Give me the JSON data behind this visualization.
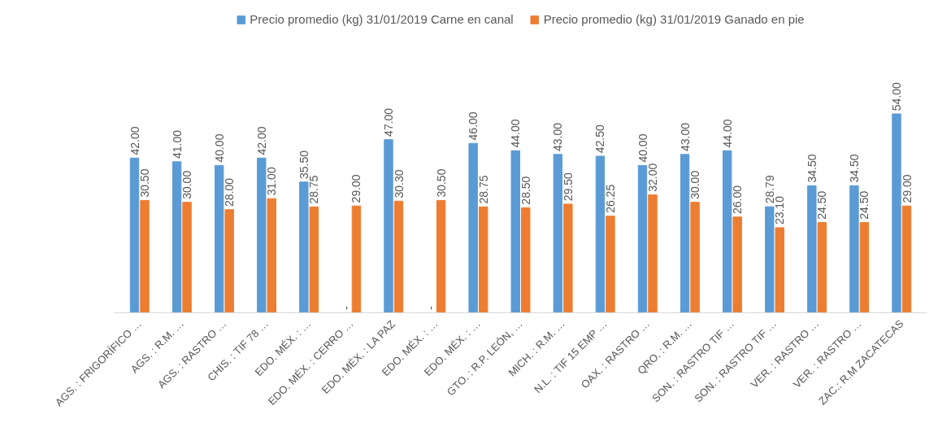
{
  "chart_data": {
    "type": "bar",
    "categories": [
      "AGS. : FRIGORÍFICO …",
      "AGS. : R.M. …",
      "AGS. : RASTRO …",
      "CHIS. : TIF 78 …",
      "EDO. MÉX. : …",
      "EDO. MÉX. : CERRO …",
      "EDO. MÉX. : LA PAZ",
      "EDO. MÉX. : …",
      "EDO. MÉX. : …",
      "GTO. : R.P. LEÓN, …",
      "MICH. : R.M. …",
      "N.L. : TIF 15 EMP …",
      "OAX. : RASTRO …",
      "QRO. : R.M. …",
      "SON. : RASTRO TIF …",
      "SON. : RASTRO TIF …",
      "VER. : RASTRO …",
      "VER. : RASTRO …",
      "ZAC.: R.M ZACATECAS"
    ],
    "series": [
      {
        "name": "Precio promedio (kg) 31/01/2019 Carne en canal",
        "color": "#5b9bd5",
        "values": [
          42,
          41,
          40,
          42,
          35.5,
          null,
          47,
          null,
          46,
          44,
          43,
          42.5,
          40,
          43,
          44,
          28.79,
          34.5,
          34.5,
          54
        ],
        "value_labels": [
          "42.00",
          "41.00",
          "40.00",
          "42.00",
          "35.50",
          "-",
          "47.00",
          "-",
          "46.00",
          "44.00",
          "43.00",
          "42.50",
          "40.00",
          "43.00",
          "44.00",
          "28.79",
          "34.50",
          "34.50",
          "54.00"
        ]
      },
      {
        "name": "Precio promedio (kg) 31/01/2019 Ganado en pie",
        "color": "#ed7d31",
        "values": [
          30.5,
          30,
          28,
          31,
          28.75,
          29,
          30.3,
          30.5,
          28.75,
          28.5,
          29.5,
          26.25,
          32,
          30,
          26,
          23.1,
          24.5,
          24.5,
          29
        ],
        "value_labels": [
          "30.50",
          "30.00",
          "28.00",
          "31.00",
          "28.75",
          "29.00",
          "30.30",
          "30.50",
          "28.75",
          "28.50",
          "29.50",
          "26.25",
          "32.00",
          "30.00",
          "26.00",
          "23.10",
          "24.50",
          "24.50",
          "29.00"
        ]
      }
    ],
    "legend": "top",
    "grid": false,
    "tick_labels": "x"
  }
}
